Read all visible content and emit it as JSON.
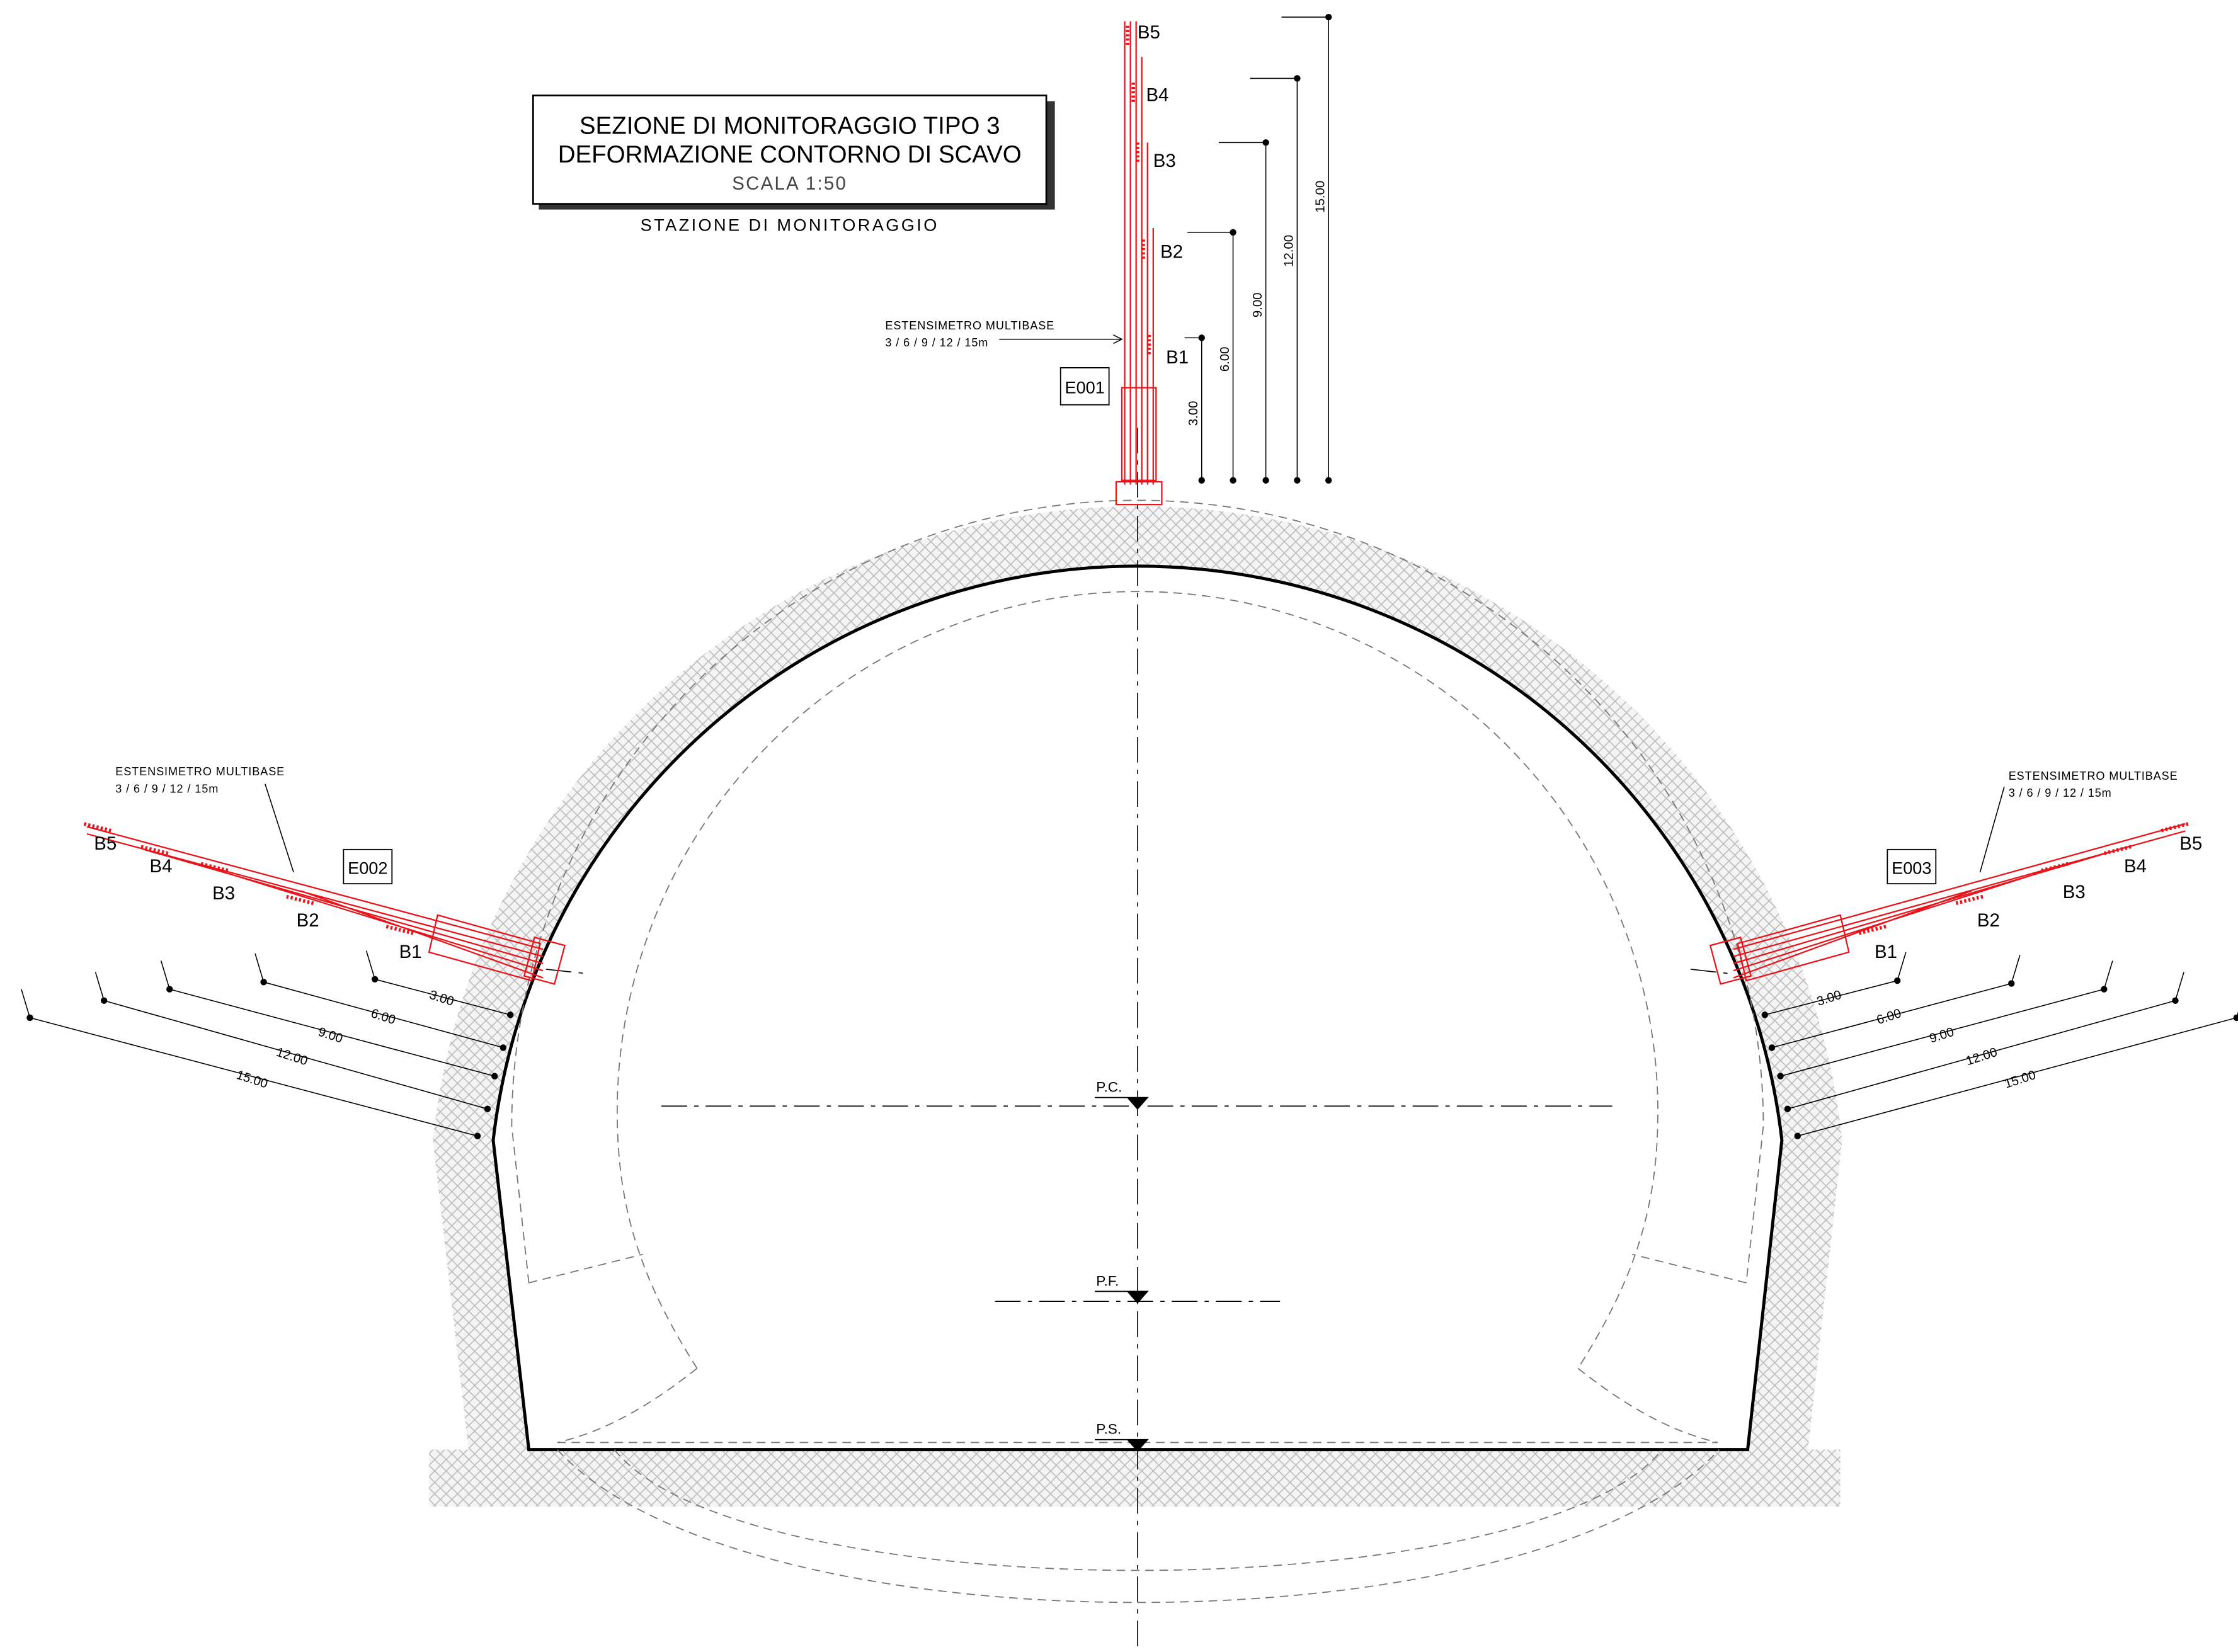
{
  "title": {
    "line1": "SEZIONE DI MONITORAGGIO TIPO 3",
    "line2": "DEFORMAZIONE CONTORNO DI SCAVO",
    "scale": "SCALA 1:50"
  },
  "station": "STAZIONE DI MONITORAGGIO",
  "extensometers": [
    {
      "id": "E001",
      "note": [
        "ESTENSIMETRO MULTIBASE",
        "3 / 6 / 9 / 12 / 15m"
      ],
      "bases": [
        "B1",
        "B2",
        "B3",
        "B4",
        "B5"
      ],
      "distances": [
        "3.00",
        "6.00",
        "9.00",
        "12.00",
        "15.00"
      ]
    },
    {
      "id": "E002",
      "note": [
        "ESTENSIMETRO MULTIBASE",
        "3 / 6 / 9 / 12 / 15m"
      ],
      "bases": [
        "B1",
        "B2",
        "B3",
        "B4",
        "B5"
      ],
      "distances": [
        "3.00",
        "6.00",
        "9.00",
        "12.00",
        "15.00"
      ]
    },
    {
      "id": "E003",
      "note": [
        "ESTENSIMETRO MULTIBASE",
        "3 / 6 / 9 / 12 / 15m"
      ],
      "bases": [
        "B1",
        "B2",
        "B3",
        "B4",
        "B5"
      ],
      "distances": [
        "3.00",
        "6.00",
        "9.00",
        "12.00",
        "15.00"
      ]
    }
  ],
  "levels": [
    "P.C.",
    "P.F.",
    "P.S."
  ]
}
